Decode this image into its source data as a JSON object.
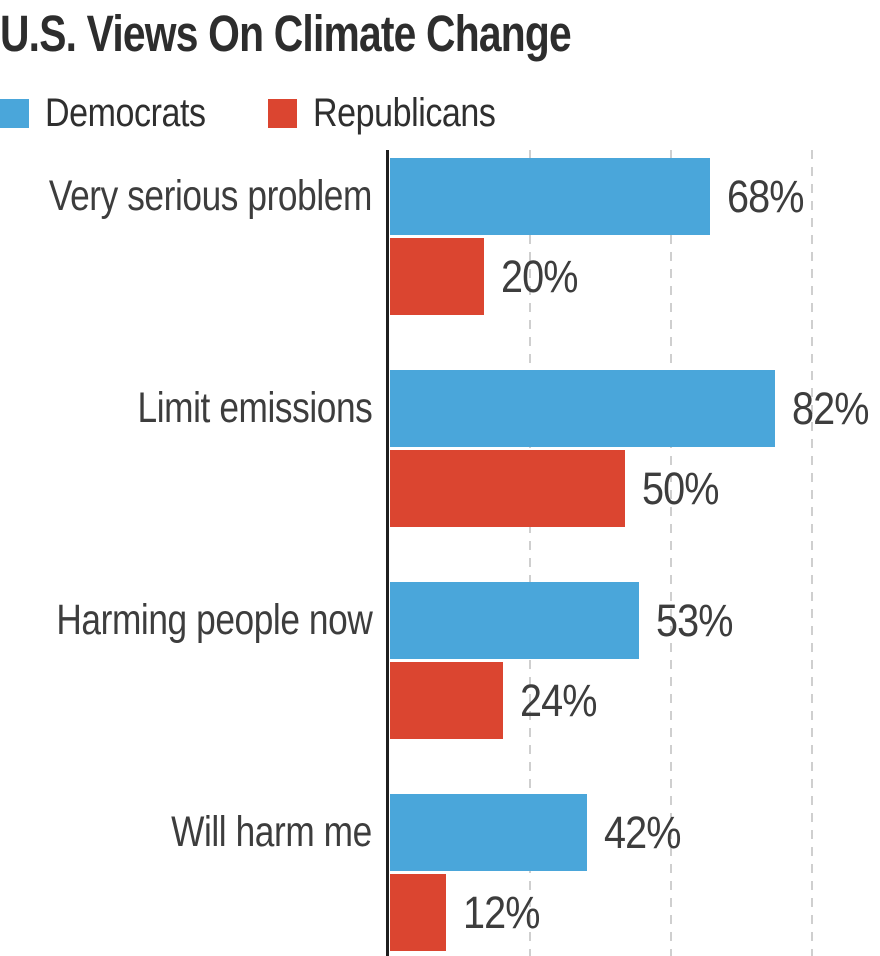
{
  "title": "U.S. Views On Climate Change",
  "chart_data": {
    "type": "bar",
    "orientation": "horizontal",
    "title": "U.S. Views On Climate Change",
    "categories": [
      "Very serious problem",
      "Limit emissions",
      "Harming people now",
      "Will harm me"
    ],
    "series": [
      {
        "name": "Democrats",
        "color": "#4AA6DA",
        "values": [
          68,
          82,
          53,
          42
        ],
        "labels": [
          "68%",
          "82%",
          "53%",
          "42%"
        ]
      },
      {
        "name": "Republicans",
        "color": "#DB4530",
        "values": [
          20,
          50,
          24,
          12
        ],
        "labels": [
          "20%",
          "50%",
          "24%",
          "12%"
        ]
      }
    ],
    "value_suffix": "%",
    "xlim": [
      0,
      104
    ],
    "gridlines": [
      30,
      60,
      90
    ],
    "grid_style": "vertical dashed, unlabeled",
    "legend_position": "top-left",
    "axis": "single solid vertical baseline at 0"
  },
  "colors": {
    "democrat_blue": "#4AA6DA",
    "republican_red": "#DB4530",
    "axis": "#1f1f1f",
    "gridline": "#cfcfcf",
    "title_text": "#2d2d2d",
    "label_text": "#3d3d3d",
    "background": "#ffffff"
  }
}
